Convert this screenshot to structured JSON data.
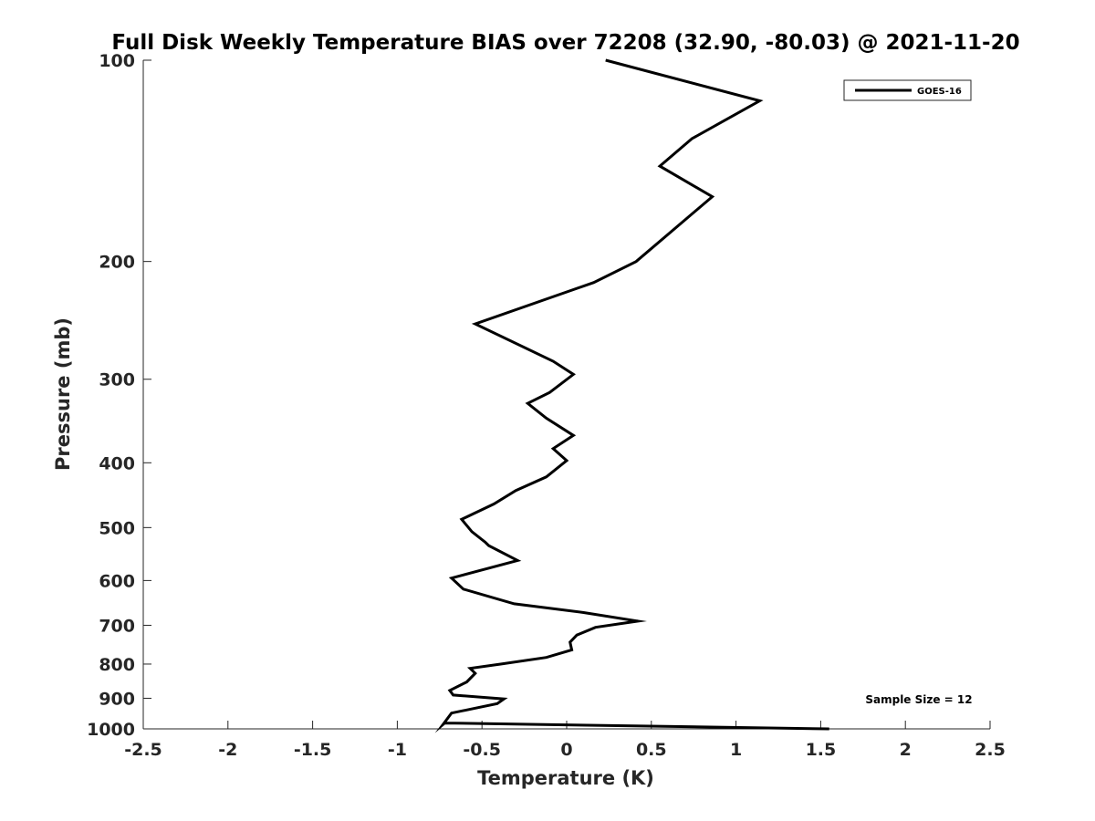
{
  "chart_data": {
    "type": "line",
    "title": "Full Disk Weekly Temperature BIAS over 72208 (32.90, -80.03) @ 2021-11-20",
    "xlabel": "Temperature (K)",
    "ylabel": "Pressure (mb)",
    "xlim": [
      -2.5,
      2.5
    ],
    "ylim": [
      1000,
      100
    ],
    "yscale": "log",
    "x_ticks": [
      "-2.5",
      "-2",
      "-1.5",
      "-1",
      "-0.5",
      "0",
      "0.5",
      "1",
      "1.5",
      "2",
      "2.5"
    ],
    "y_ticks": [
      "100",
      "200",
      "300",
      "400",
      "500",
      "600",
      "700",
      "800",
      "900",
      "1000"
    ],
    "grid": false,
    "legend_position": "top-right",
    "annotation": "Sample Size = 12",
    "series": [
      {
        "name": "GOES-16",
        "color": "#000000",
        "x": [
          0.23,
          1.14,
          0.74,
          0.55,
          0.86,
          0.41,
          0.16,
          -0.54,
          -0.08,
          0.04,
          -0.1,
          -0.23,
          -0.12,
          0.04,
          -0.08,
          0.0,
          -0.12,
          -0.3,
          -0.43,
          -0.62,
          -0.56,
          -0.48,
          -0.46,
          -0.29,
          -0.68,
          -0.61,
          -0.31,
          0.1,
          0.42,
          0.17,
          0.06,
          0.02,
          0.03,
          -0.12,
          -0.39,
          -0.57,
          -0.54,
          -0.59,
          -0.69,
          -0.67,
          -0.37,
          -0.41,
          -0.68,
          -0.73,
          -0.72,
          1.55
        ],
        "y": [
          100,
          115,
          131,
          144,
          160,
          200,
          215,
          248,
          282,
          295,
          314,
          326,
          343,
          364,
          381,
          397,
          420,
          440,
          461,
          486,
          507,
          526,
          532,
          560,
          595,
          618,
          650,
          670,
          690,
          705,
          724,
          742,
          762,
          782,
          800,
          812,
          826,
          851,
          876,
          890,
          902,
          917,
          947,
          985,
          980,
          1000
        ]
      }
    ]
  }
}
